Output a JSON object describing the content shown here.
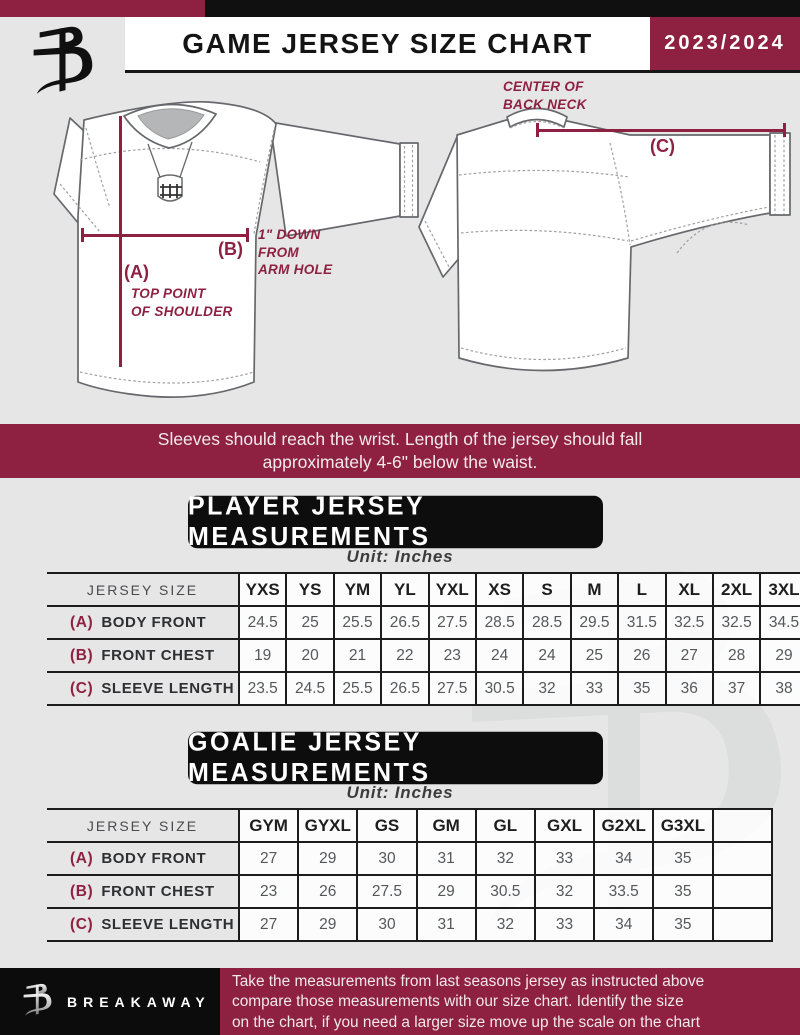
{
  "header": {
    "title": "GAME JERSEY SIZE CHART",
    "season": "2023/2024"
  },
  "diagram": {
    "front": {
      "marker_a": "(A)",
      "marker_b": "(B)",
      "label_a_line1": "TOP POINT",
      "label_a_line2": "OF SHOULDER",
      "label_b_line1": "1\" DOWN",
      "label_b_line2": "FROM",
      "label_b_line3": "ARM HOLE"
    },
    "back": {
      "marker_c": "(C)",
      "label_c_line1": "CENTER OF",
      "label_c_line2": "BACK NECK"
    }
  },
  "note_banner": {
    "line1": "Sleeves should reach the wrist. Length of the jersey should fall",
    "line2": "approximately 4-6\" below the waist."
  },
  "player_section": {
    "heading": "PLAYER JERSEY MEASUREMENTS",
    "unit": "Unit: Inches",
    "table": {
      "corner_label": "JERSEY SIZE",
      "sizes": [
        "YXS",
        "YS",
        "YM",
        "YL",
        "YXL",
        "XS",
        "S",
        "M",
        "L",
        "XL",
        "2XL",
        "3XL"
      ],
      "rows": [
        {
          "marker": "(A)",
          "label": "BODY FRONT",
          "values": [
            "24.5",
            "25",
            "25.5",
            "26.5",
            "27.5",
            "28.5",
            "28.5",
            "29.5",
            "31.5",
            "32.5",
            "32.5",
            "34.5"
          ]
        },
        {
          "marker": "(B)",
          "label": "FRONT CHEST",
          "values": [
            "19",
            "20",
            "21",
            "22",
            "23",
            "24",
            "24",
            "25",
            "26",
            "27",
            "28",
            "29"
          ]
        },
        {
          "marker": "(C)",
          "label": "SLEEVE LENGTH",
          "values": [
            "23.5",
            "24.5",
            "25.5",
            "26.5",
            "27.5",
            "30.5",
            "32",
            "33",
            "35",
            "36",
            "37",
            "38"
          ]
        }
      ]
    }
  },
  "goalie_section": {
    "heading": "GOALIE JERSEY MEASUREMENTS",
    "unit": "Unit: Inches",
    "table": {
      "corner_label": "JERSEY SIZE",
      "sizes": [
        "GYM",
        "GYXL",
        "GS",
        "GM",
        "GL",
        "GXL",
        "G2XL",
        "G3XL",
        ""
      ],
      "rows": [
        {
          "marker": "(A)",
          "label": "BODY FRONT",
          "values": [
            "27",
            "29",
            "30",
            "31",
            "32",
            "33",
            "34",
            "35",
            ""
          ]
        },
        {
          "marker": "(B)",
          "label": "FRONT CHEST",
          "values": [
            "23",
            "26",
            "27.5",
            "29",
            "30.5",
            "32",
            "33.5",
            "35",
            ""
          ]
        },
        {
          "marker": "(C)",
          "label": "SLEEVE LENGTH",
          "values": [
            "27",
            "29",
            "30",
            "31",
            "32",
            "33",
            "34",
            "35",
            ""
          ]
        }
      ]
    }
  },
  "footer": {
    "brand": "BREAKAWAY",
    "line1": "Take the measurements from last seasons jersey as instructed above",
    "line2": "compare those measurements  with our size chart. Identify the size",
    "line3": "on the chart, if you need a larger size move up the scale on the chart"
  },
  "colors": {
    "maroon": "#8e2142",
    "black": "#101010",
    "page_background": "#e7e6e7",
    "value_text": "#55575a",
    "watermark": "#dcdddd"
  }
}
